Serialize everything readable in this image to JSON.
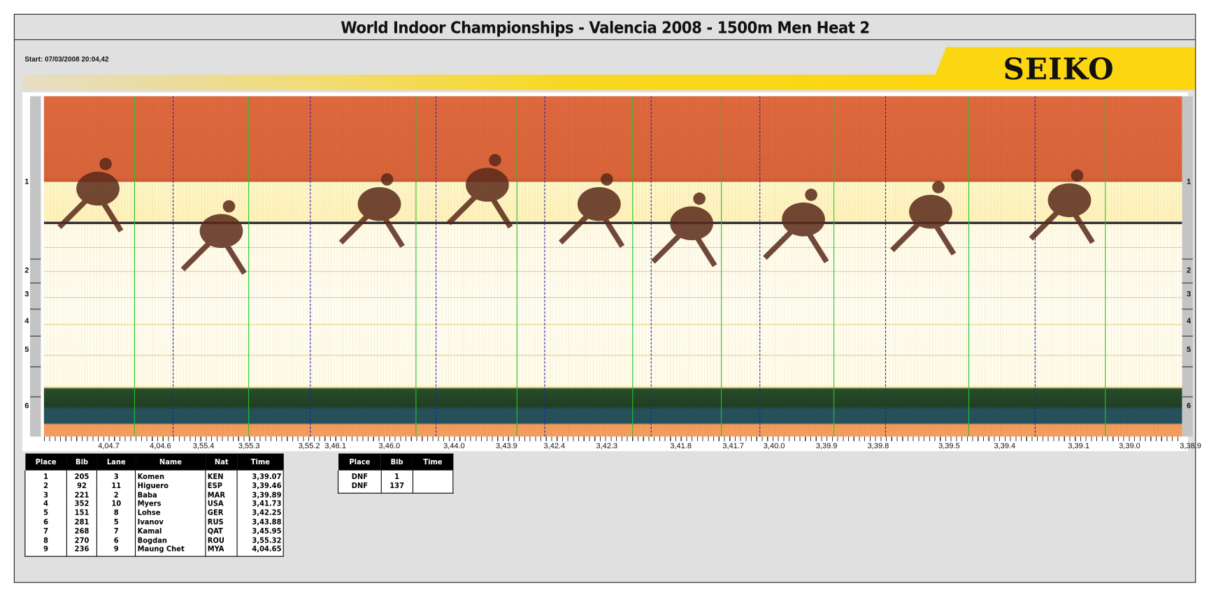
{
  "header": {
    "title": "World Indoor Championships - Valencia 2008 - 1500m Men Heat 2",
    "start": "Start: 07/03/2008 20:04,42",
    "logo": "SEIKO"
  },
  "colors": {
    "brand_yellow": "#fcd610",
    "timeline_green": "#27c427",
    "timeline_blue": "#2222aa"
  },
  "lanes": [
    "1",
    "2",
    "3",
    "4",
    "5",
    "6"
  ],
  "time_axis": [
    "4,04.7",
    "4,04.6",
    "3,55.4",
    "3,55.3",
    "3,55.2",
    "3,46.1",
    "3,46.0",
    "3,44.0",
    "3,43.9",
    "3,42.4",
    "3,42.3",
    "3,41.8",
    "3,41.7",
    "3,40.0",
    "3,39.9",
    "3,39.8",
    "3,39.5",
    "3,39.4",
    "3,39.1",
    "3,39.0",
    "3,38.9"
  ],
  "results": {
    "columns": [
      "Place",
      "Bib",
      "Lane",
      "Name",
      "Nat",
      "Time"
    ],
    "rows": [
      [
        "1",
        "205",
        "3",
        "Komen",
        "KEN",
        "3,39.07"
      ],
      [
        "2",
        "92",
        "11",
        "Higuero",
        "ESP",
        "3,39.46"
      ],
      [
        "3",
        "221",
        "2",
        "Baba",
        "MAR",
        "3,39.89"
      ],
      [
        "4",
        "352",
        "10",
        "Myers",
        "USA",
        "3,41.73"
      ],
      [
        "5",
        "151",
        "8",
        "Lohse",
        "GER",
        "3,42.25"
      ],
      [
        "6",
        "281",
        "5",
        "Ivanov",
        "RUS",
        "3,43.88"
      ],
      [
        "7",
        "268",
        "7",
        "Kamal",
        "QAT",
        "3,45.95"
      ],
      [
        "8",
        "270",
        "6",
        "Bogdan",
        "ROU",
        "3,55.32"
      ],
      [
        "9",
        "236",
        "9",
        "Maung Chet",
        "MYA",
        "4,04.65"
      ]
    ]
  },
  "dnf": {
    "columns": [
      "Place",
      "Bib",
      "Time"
    ],
    "rows": [
      [
        "DNF",
        "1",
        ""
      ],
      [
        "DNF",
        "137",
        ""
      ]
    ]
  }
}
